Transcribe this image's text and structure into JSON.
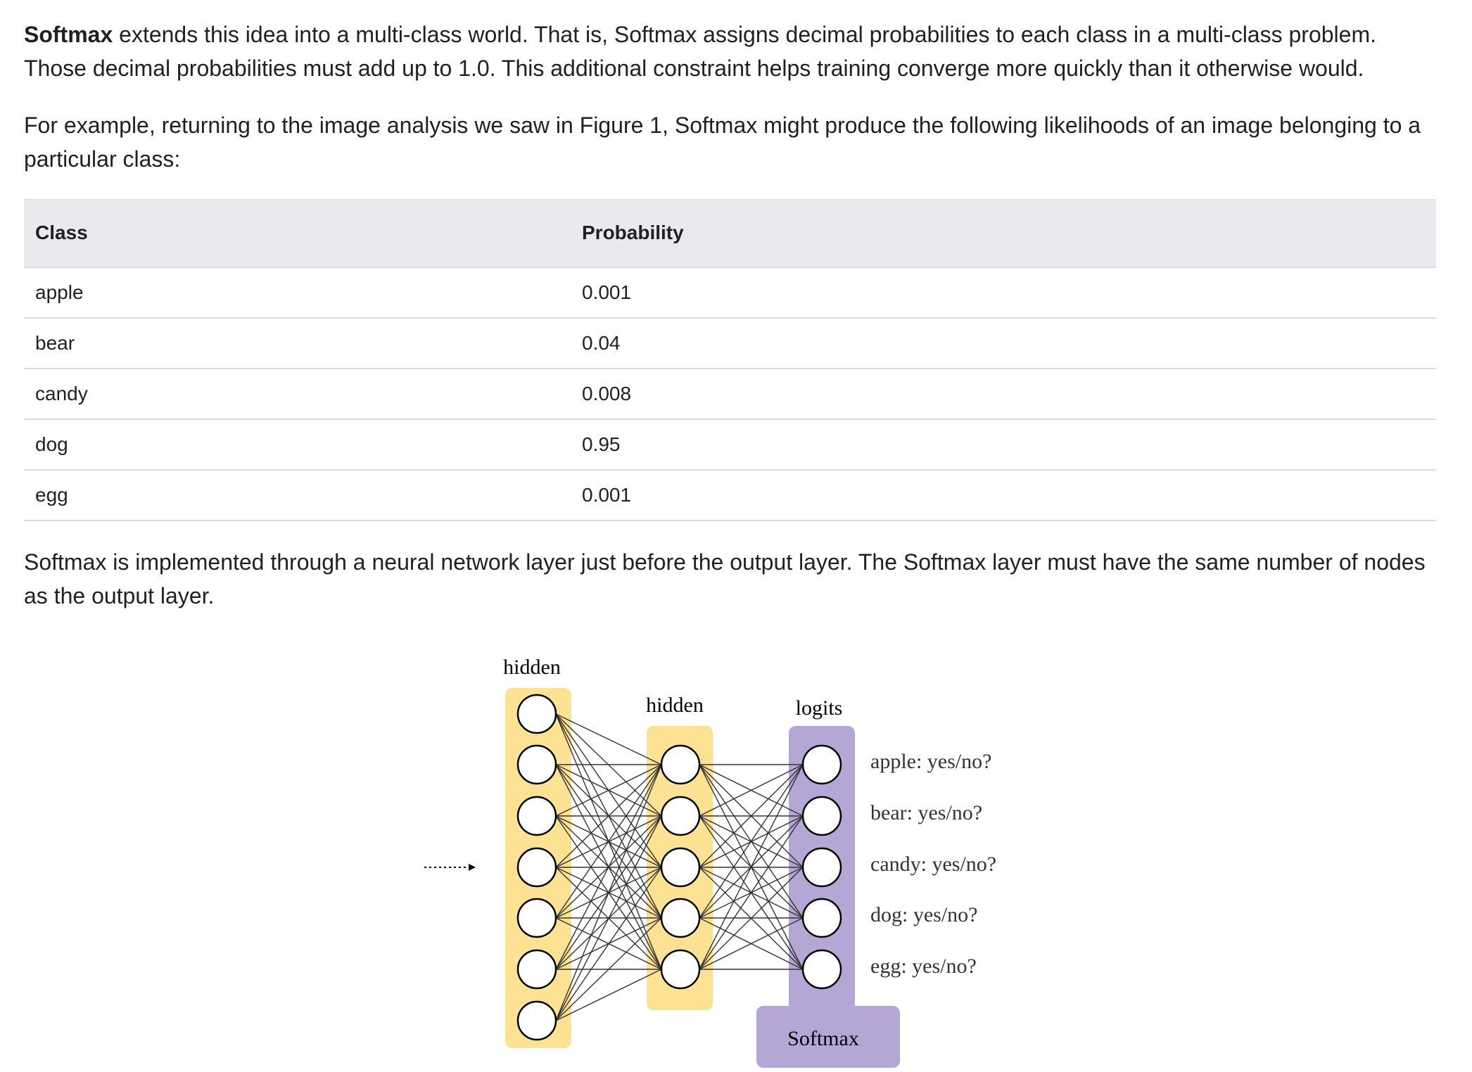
{
  "intro": {
    "term": "Softmax",
    "rest": " extends this idea into a multi-class world. That is, Softmax assigns decimal probabilities to each class in a multi-class problem. Those decimal probabilities must add up to 1.0. This additional constraint helps training converge more quickly than it otherwise would."
  },
  "example": "For example, returning to the image analysis we saw in Figure 1, Softmax might produce the following likelihoods of an image belonging to a particular class:",
  "table": {
    "headers": [
      "Class",
      "Probability"
    ],
    "rows": [
      {
        "class": "apple",
        "probability": "0.001"
      },
      {
        "class": "bear",
        "probability": "0.04"
      },
      {
        "class": "candy",
        "probability": "0.008"
      },
      {
        "class": "dog",
        "probability": "0.95"
      },
      {
        "class": "egg",
        "probability": "0.001"
      }
    ]
  },
  "implementation": "Softmax is implemented through a neural network layer just before the output layer. The Softmax layer must have the same number of nodes as the output layer.",
  "diagram": {
    "layer1_label": "hidden",
    "layer2_label": "hidden",
    "layer3_label": "logits",
    "softmax_label": "Softmax",
    "outputs": [
      "apple: yes/no?",
      "bear: yes/no?",
      "candy: yes/no?",
      "dog: yes/no?",
      "egg: yes/no?"
    ],
    "colors": {
      "hidden": "#fde293",
      "logits": "#b4a7d6"
    }
  }
}
